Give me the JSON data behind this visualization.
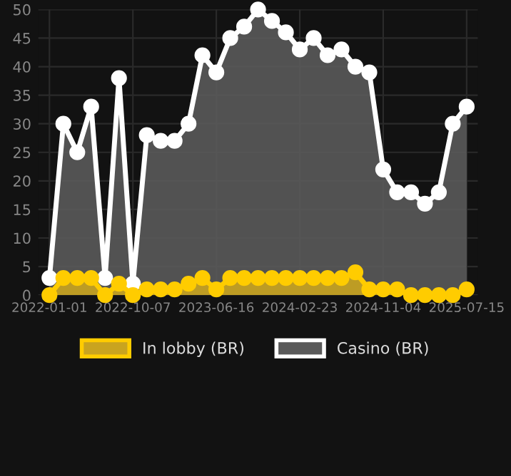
{
  "chart_data": {
    "type": "area",
    "categories": [
      "2022-01-01",
      null,
      null,
      null,
      null,
      null,
      "2022-10-07",
      null,
      null,
      null,
      null,
      null,
      "2023-06-16",
      null,
      null,
      null,
      null,
      null,
      "2024-02-23",
      null,
      null,
      null,
      null,
      null,
      "2024-11-04",
      null,
      null,
      null,
      null,
      null,
      "2025-07-15"
    ],
    "series": [
      {
        "name": "In lobby (BR)",
        "color": "#ffcc00",
        "values": [
          0,
          3,
          3,
          3,
          0,
          2,
          0,
          1,
          1,
          1,
          2,
          3,
          1,
          3,
          3,
          3,
          3,
          3,
          3,
          3,
          3,
          3,
          4,
          1,
          1,
          1,
          0,
          0,
          0,
          0,
          1
        ]
      },
      {
        "name": "Casino (BR)",
        "color": "#ffffff",
        "values": [
          3,
          30,
          25,
          33,
          3,
          38,
          2,
          28,
          27,
          27,
          30,
          42,
          39,
          45,
          47,
          50,
          48,
          46,
          43,
          45,
          42,
          43,
          40,
          39,
          22,
          18,
          18,
          16,
          18,
          30,
          33
        ]
      }
    ],
    "ylim": [
      0,
      50
    ],
    "yticks": [
      0,
      5,
      10,
      15,
      20,
      25,
      30,
      35,
      40,
      45,
      50
    ],
    "grid": true,
    "legend": "bottom",
    "marker": "circle"
  }
}
